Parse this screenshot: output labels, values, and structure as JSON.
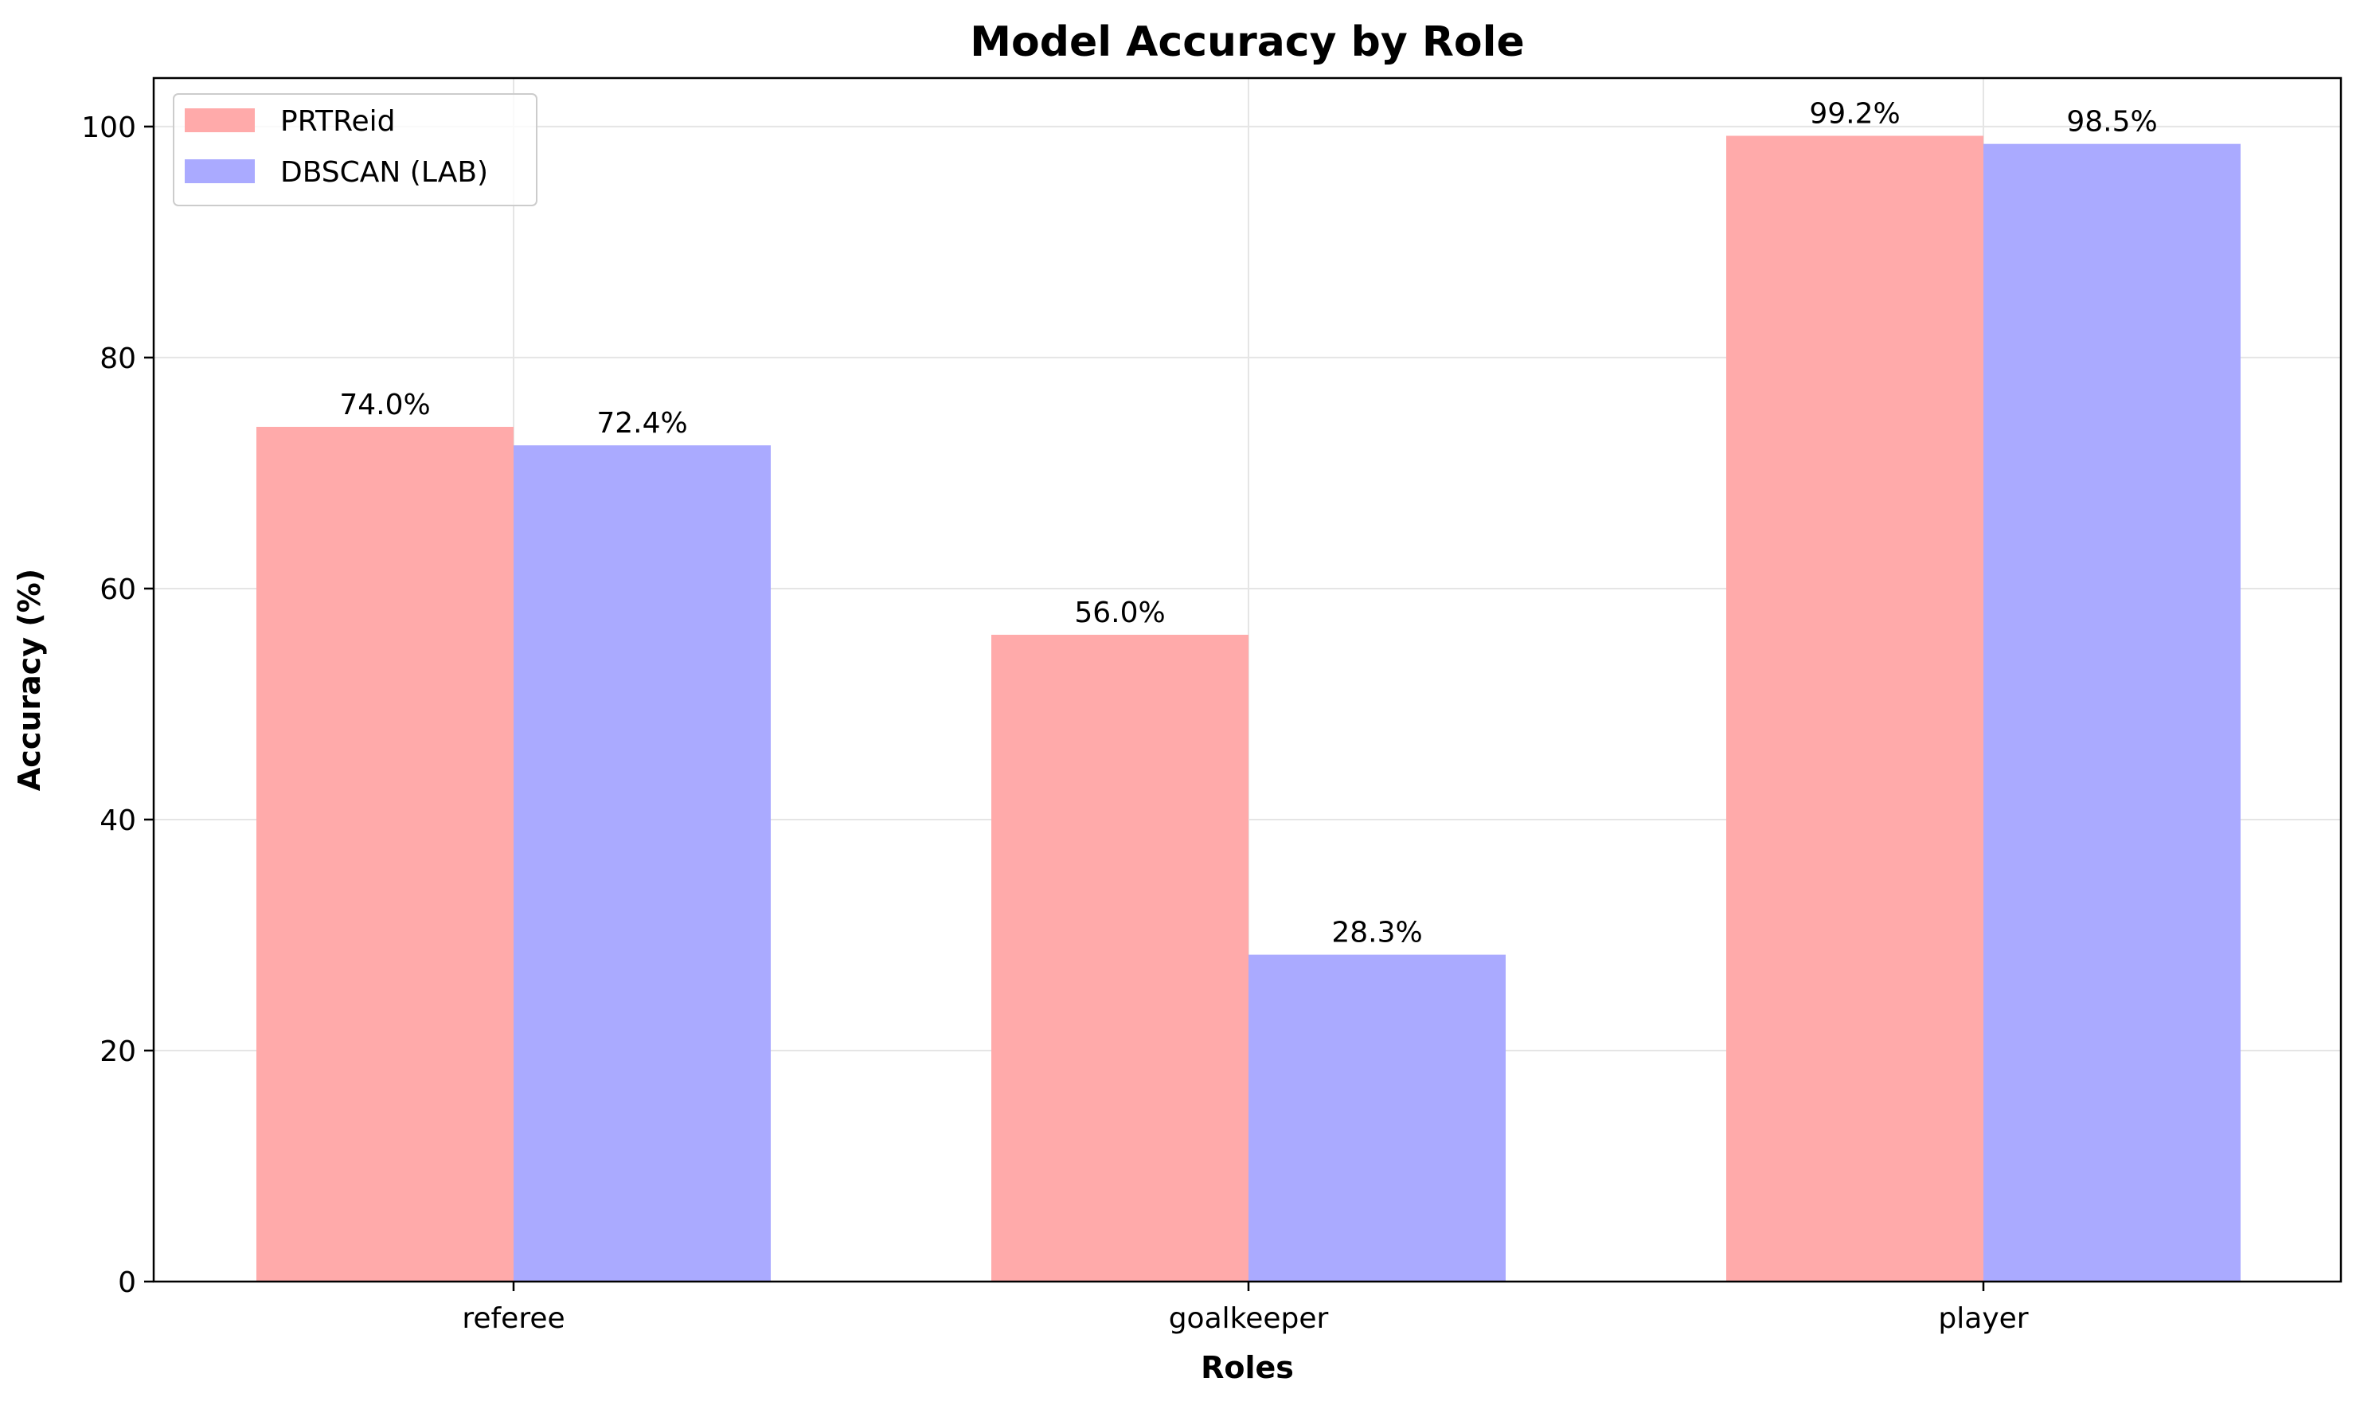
{
  "chart_data": {
    "type": "bar",
    "title": "Model Accuracy by Role",
    "xlabel": "Roles",
    "ylabel": "Accuracy (%)",
    "categories": [
      "referee",
      "goalkeeper",
      "player"
    ],
    "ylim": [
      0,
      104.2
    ],
    "yticks": [
      0,
      20,
      40,
      60,
      80,
      100
    ],
    "grid": true,
    "legend_position": "top-left",
    "series": [
      {
        "name": "PRTReid",
        "values": [
          74.0,
          56.0,
          99.2
        ],
        "labels": [
          "74.0%",
          "56.0%",
          "99.2%"
        ],
        "color": "#ffaaaa"
      },
      {
        "name": "DBSCAN (LAB)",
        "values": [
          72.4,
          28.3,
          98.5
        ],
        "labels": [
          "72.4%",
          "28.3%",
          "98.5%"
        ],
        "color": "#aaaaff"
      }
    ]
  }
}
